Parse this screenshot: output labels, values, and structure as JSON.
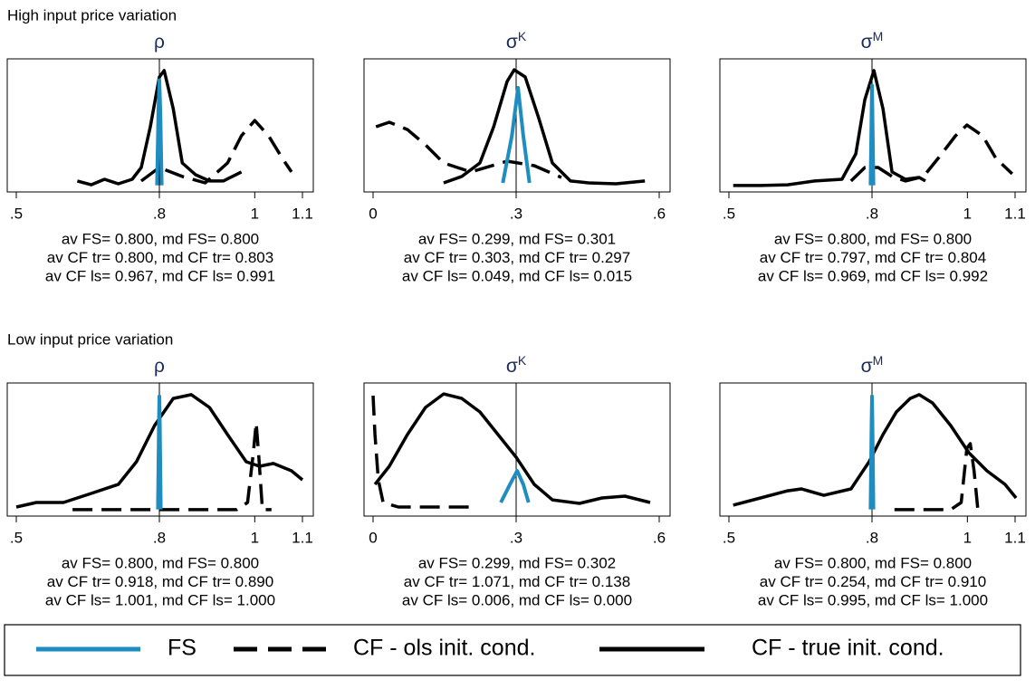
{
  "chart_data": [
    {
      "type": "line",
      "group_title": "High input price variation",
      "title": "ρ",
      "xlim": [
        0.5,
        1.1
      ],
      "ylim": [
        0,
        1
      ],
      "xticks": [
        {
          "value": 0.5,
          "label": ".5"
        },
        {
          "value": 0.8,
          "label": ".8"
        },
        1,
        1.1
      ],
      "reference_x": 0.8,
      "annotations": [
        "av FS= 0.800, md FS= 0.800",
        "av CF tr= 0.800, md CF tr= 0.803",
        "av CF ls= 0.967, md CF ls= 0.991"
      ],
      "series": [
        {
          "name": "FS",
          "color": "#1f8dbf",
          "style": "solid",
          "x": [
            0.795,
            0.798,
            0.8,
            0.802,
            0.805
          ],
          "values": [
            0.05,
            0.6,
            0.84,
            0.6,
            0.05
          ]
        },
        {
          "name": "CF - ols init. cond.",
          "color": "#000000",
          "style": "dashed",
          "x": [
            0.762,
            0.8,
            0.848,
            0.896,
            0.943,
            0.972,
            1.0,
            1.029,
            1.058,
            1.077
          ],
          "values": [
            0.082,
            0.184,
            0.116,
            0.068,
            0.218,
            0.422,
            0.537,
            0.422,
            0.252,
            0.15
          ]
        },
        {
          "name": "CF - true init. cond.",
          "color": "#000000",
          "style": "solid",
          "x": [
            0.628,
            0.657,
            0.685,
            0.714,
            0.743,
            0.762,
            0.781,
            0.8,
            0.81,
            0.829,
            0.848,
            0.876,
            0.905,
            0.934,
            0.953,
            0.972
          ],
          "values": [
            0.082,
            0.054,
            0.095,
            0.061,
            0.095,
            0.184,
            0.49,
            0.864,
            0.912,
            0.626,
            0.218,
            0.129,
            0.082,
            0.082,
            0.116,
            0.15
          ]
        }
      ]
    },
    {
      "type": "line",
      "title": "σ",
      "title_sup": "K",
      "xlim": [
        0,
        0.6
      ],
      "ylim": [
        0,
        1
      ],
      "xticks": [
        0,
        {
          "value": 0.3,
          "label": ".3"
        },
        {
          "value": 0.6,
          "label": ".6"
        }
      ],
      "reference_x": 0.3,
      "annotations": [
        "av FS= 0.299, md FS= 0.301",
        "av CF tr= 0.303, md CF tr= 0.297",
        "av CF ls= 0.049, md CF ls= 0.015"
      ],
      "series": [
        {
          "name": "FS",
          "color": "#1f8dbf",
          "style": "solid",
          "x": [
            0.272,
            0.291,
            0.304,
            0.315,
            0.328
          ],
          "values": [
            0.068,
            0.422,
            0.782,
            0.422,
            0.068
          ]
        },
        {
          "name": "CF - ols init. cond.",
          "color": "#000000",
          "style": "dashed",
          "x": [
            0.006,
            0.034,
            0.072,
            0.11,
            0.148,
            0.205,
            0.281,
            0.338,
            0.395
          ],
          "values": [
            0.49,
            0.524,
            0.469,
            0.354,
            0.218,
            0.15,
            0.231,
            0.197,
            0.109
          ]
        },
        {
          "name": "CF - true init. cond.",
          "color": "#000000",
          "style": "solid",
          "x": [
            0.148,
            0.186,
            0.224,
            0.253,
            0.281,
            0.296,
            0.319,
            0.347,
            0.376,
            0.414,
            0.452,
            0.509,
            0.57
          ],
          "values": [
            0.068,
            0.116,
            0.218,
            0.49,
            0.83,
            0.918,
            0.864,
            0.558,
            0.218,
            0.082,
            0.068,
            0.061,
            0.082
          ]
        }
      ]
    },
    {
      "type": "line",
      "title": "σ",
      "title_sup": "M",
      "xlim": [
        0.5,
        1.1
      ],
      "ylim": [
        0,
        1
      ],
      "xticks": [
        {
          "value": 0.5,
          "label": ".5"
        },
        {
          "value": 0.8,
          "label": ".8"
        },
        1,
        1.1
      ],
      "reference_x": 0.8,
      "annotations": [
        "av FS= 0.800, md FS= 0.800",
        "av CF tr= 0.797, md CF tr= 0.804",
        "av CF ls= 0.969, md CF ls= 0.992"
      ],
      "series": [
        {
          "name": "FS",
          "color": "#1f8dbf",
          "style": "solid",
          "x": [
            0.797,
            0.799,
            0.8,
            0.801,
            0.803
          ],
          "values": [
            0.05,
            0.6,
            0.8,
            0.6,
            0.05
          ]
        },
        {
          "name": "CF - ols init. cond.",
          "color": "#000000",
          "style": "dashed",
          "x": [
            0.756,
            0.785,
            0.813,
            0.842,
            0.87,
            0.908,
            0.946,
            0.975,
            0.999,
            1.032,
            1.06,
            1.094
          ],
          "values": [
            0.082,
            0.184,
            0.184,
            0.116,
            0.082,
            0.116,
            0.286,
            0.422,
            0.503,
            0.422,
            0.252,
            0.136
          ]
        },
        {
          "name": "CF - true init. cond.",
          "color": "#000000",
          "style": "solid",
          "x": [
            0.509,
            0.566,
            0.623,
            0.68,
            0.737,
            0.766,
            0.785,
            0.804,
            0.823,
            0.842,
            0.87,
            0.899,
            0.912
          ],
          "values": [
            0.048,
            0.048,
            0.054,
            0.082,
            0.095,
            0.286,
            0.694,
            0.912,
            0.626,
            0.15,
            0.095,
            0.109,
            0.082
          ]
        }
      ]
    },
    {
      "type": "line",
      "group_title": "Low input price variation",
      "title": "ρ",
      "xlim": [
        0.5,
        1.1
      ],
      "ylim": [
        0,
        1
      ],
      "xticks": [
        {
          "value": 0.5,
          "label": ".5"
        },
        {
          "value": 0.8,
          "label": ".8"
        },
        1,
        1.1
      ],
      "reference_x": 0.8,
      "annotations": [
        "av FS= 0.800, md FS= 0.800",
        "av CF tr= 0.918, md CF tr= 0.890",
        "av CF ls= 1.001, md CF ls= 1.000"
      ],
      "series": [
        {
          "name": "FS",
          "color": "#1f8dbf",
          "style": "solid",
          "x": [
            0.797,
            0.799,
            0.8,
            0.801,
            0.803
          ],
          "values": [
            0.05,
            0.7,
            0.9,
            0.7,
            0.05
          ]
        },
        {
          "name": "CF - ols init. cond.",
          "color": "#000000",
          "style": "dashed",
          "x": [
            0.618,
            0.848,
            0.962,
            0.985,
            0.997,
            1.003,
            1.008,
            1.016,
            1.035
          ],
          "values": [
            0.048,
            0.048,
            0.048,
            0.102,
            0.476,
            0.701,
            0.476,
            0.048,
            0.048
          ]
        },
        {
          "name": "CF - true init. cond.",
          "color": "#000000",
          "style": "solid",
          "x": [
            0.5,
            0.542,
            0.599,
            0.657,
            0.714,
            0.752,
            0.79,
            0.829,
            0.867,
            0.905,
            0.943,
            0.982,
            1.01,
            1.039,
            1.077,
            1.1
          ],
          "values": [
            0.068,
            0.102,
            0.102,
            0.17,
            0.238,
            0.408,
            0.68,
            0.884,
            0.912,
            0.816,
            0.612,
            0.408,
            0.374,
            0.395,
            0.34,
            0.272
          ]
        }
      ]
    },
    {
      "type": "line",
      "title": "σ",
      "title_sup": "K",
      "xlim": [
        0,
        0.6
      ],
      "ylim": [
        0,
        1
      ],
      "xticks": [
        0,
        {
          "value": 0.3,
          "label": ".3"
        },
        {
          "value": 0.6,
          "label": ".6"
        }
      ],
      "reference_x": 0.3,
      "annotations": [
        "av FS= 0.299, md FS= 0.302",
        "av CF tr= 1.071, md CF tr= 0.138",
        "av CF ls= 0.006, md CF ls= 0.000"
      ],
      "series": [
        {
          "name": "FS",
          "color": "#1f8dbf",
          "style": "solid",
          "x": [
            0.268,
            0.287,
            0.302,
            0.315,
            0.326
          ],
          "values": [
            0.102,
            0.238,
            0.34,
            0.238,
            0.102
          ]
        },
        {
          "name": "CF - ols init. cond.",
          "color": "#000000",
          "style": "dashed",
          "x": [
            0.0,
            0.004,
            0.011,
            0.021,
            0.053,
            0.129,
            0.205
          ],
          "values": [
            0.905,
            0.612,
            0.272,
            0.102,
            0.068,
            0.068,
            0.068
          ]
        },
        {
          "name": "CF - true init. cond.",
          "color": "#000000",
          "style": "solid",
          "x": [
            0.004,
            0.034,
            0.072,
            0.11,
            0.148,
            0.186,
            0.224,
            0.262,
            0.3,
            0.338,
            0.376,
            0.433,
            0.48,
            0.528,
            0.581
          ],
          "values": [
            0.238,
            0.374,
            0.612,
            0.816,
            0.918,
            0.884,
            0.782,
            0.612,
            0.442,
            0.238,
            0.122,
            0.095,
            0.136,
            0.15,
            0.102
          ]
        }
      ]
    },
    {
      "type": "line",
      "title": "σ",
      "title_sup": "M",
      "xlim": [
        0.5,
        1.1
      ],
      "ylim": [
        0,
        1
      ],
      "xticks": [
        {
          "value": 0.5,
          "label": ".5"
        },
        {
          "value": 0.8,
          "label": ".8"
        },
        1,
        1.1
      ],
      "reference_x": 0.8,
      "annotations": [
        "av FS= 0.800, md FS= 0.800",
        "av CF tr= 0.254, md CF tr= 0.910",
        "av CF ls= 0.995, md CF ls= 1.000"
      ],
      "series": [
        {
          "name": "FS",
          "color": "#1f8dbf",
          "style": "solid",
          "x": [
            0.797,
            0.799,
            0.8,
            0.801,
            0.803
          ],
          "values": [
            0.05,
            0.7,
            0.9,
            0.7,
            0.05
          ]
        },
        {
          "name": "CF - ols init. cond.",
          "color": "#000000",
          "style": "dashed",
          "x": [
            0.847,
            0.965,
            0.987,
            0.999,
            1.006,
            1.014,
            1.022
          ],
          "values": [
            0.048,
            0.048,
            0.102,
            0.51,
            0.544,
            0.34,
            0.048
          ]
        },
        {
          "name": "CF - true init. cond.",
          "color": "#000000",
          "style": "solid",
          "x": [
            0.509,
            0.566,
            0.623,
            0.652,
            0.699,
            0.756,
            0.794,
            0.823,
            0.851,
            0.88,
            0.899,
            0.927,
            0.965,
            1.003,
            1.041,
            1.079,
            1.102
          ],
          "values": [
            0.082,
            0.136,
            0.19,
            0.204,
            0.156,
            0.204,
            0.408,
            0.612,
            0.782,
            0.884,
            0.912,
            0.85,
            0.68,
            0.476,
            0.34,
            0.238,
            0.136
          ]
        }
      ]
    }
  ]
}
